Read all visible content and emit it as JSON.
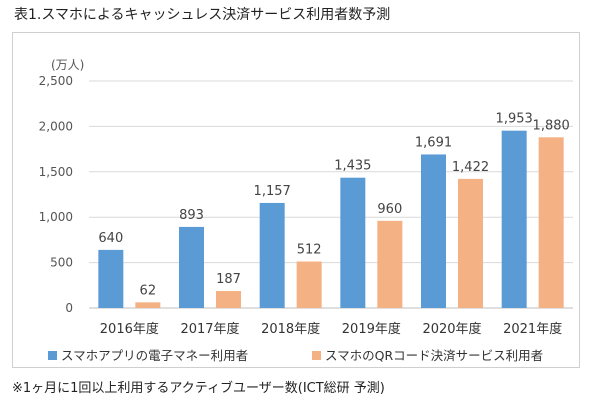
{
  "title": "表1.スマホによるキャッシュレス決済サービス利用者数予測",
  "footnote": "※1ヶ月に1回以上利用するアクティブユーザー数(ICT総研 予測)",
  "chart_data": {
    "type": "bar",
    "ylabel": "(万人)",
    "ylim": [
      0,
      2500
    ],
    "yticks": [
      "0",
      "500",
      "1,000",
      "1,500",
      "2,000",
      "2,500"
    ],
    "grid": true,
    "legend_position": "bottom",
    "categories": [
      "2016年度",
      "2017年度",
      "2018年度",
      "2019年度",
      "2020年度",
      "2021年度"
    ],
    "series": [
      {
        "name": "スマホアプリの電子マネー利用者",
        "color": "#5b9bd5",
        "values": [
          640,
          893,
          1157,
          1435,
          1691,
          1953
        ],
        "labels": [
          "640",
          "893",
          "1,157",
          "1,435",
          "1,691",
          "1,953"
        ]
      },
      {
        "name": "スマホのQRコード決済サービス利用者",
        "color": "#f4b183",
        "values": [
          62,
          187,
          512,
          960,
          1422,
          1880
        ],
        "labels": [
          "62",
          "187",
          "512",
          "960",
          "1,422",
          "1,880"
        ]
      }
    ]
  }
}
